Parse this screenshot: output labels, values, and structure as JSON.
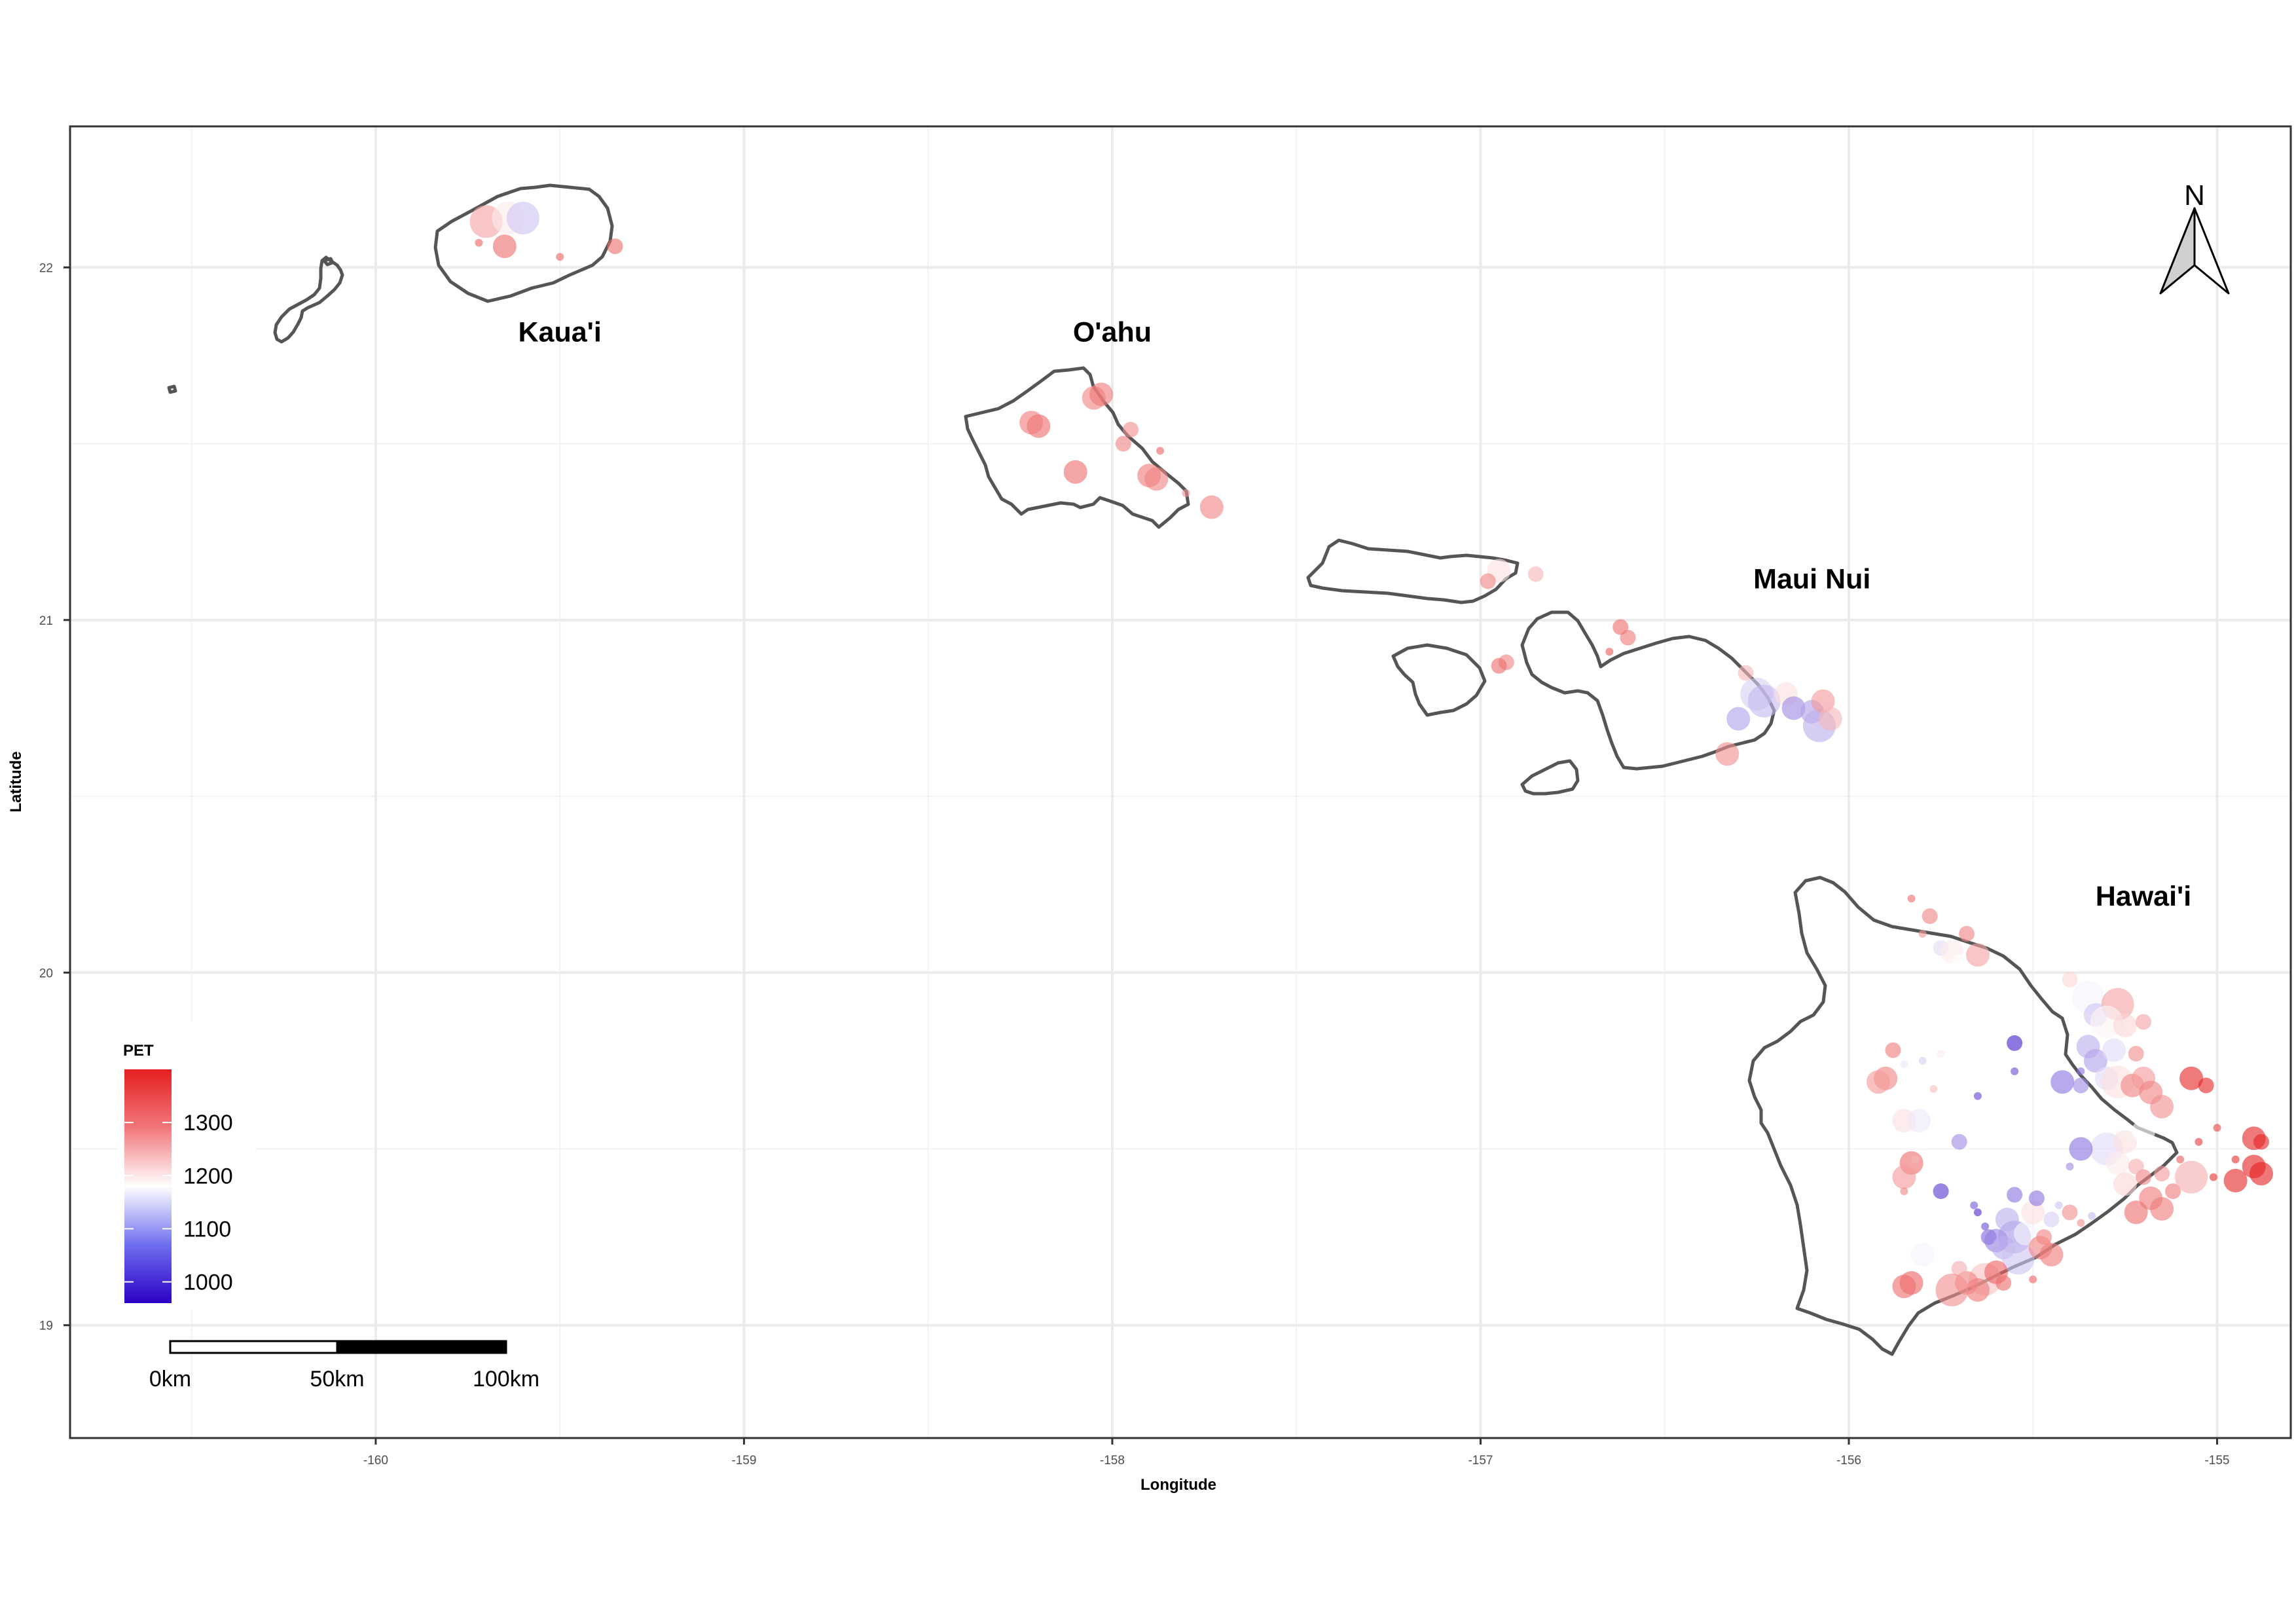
{
  "x_axis": {
    "title": "Longitude",
    "ticks": [
      -160,
      -159,
      -158,
      -157,
      -156,
      -155
    ],
    "tick_labels": [
      "-160",
      "-159",
      "-158",
      "-157",
      "-156",
      "-155"
    ]
  },
  "y_axis": {
    "title": "Latitude",
    "ticks": [
      19,
      20,
      21,
      22
    ],
    "tick_labels": [
      "19",
      "20",
      "21",
      "22"
    ]
  },
  "islands": [
    {
      "name": "Kaua'i",
      "lon": -159.5,
      "lat": 21.79
    },
    {
      "name": "O'ahu",
      "lon": -158.0,
      "lat": 21.79
    },
    {
      "name": "Maui Nui",
      "lon": -156.1,
      "lat": 21.09
    },
    {
      "name": "Hawai'i",
      "lon": -155.2,
      "lat": 20.19
    }
  ],
  "legend": {
    "title": "PET",
    "labels": [
      "1300",
      "1200",
      "1100",
      "1000"
    ],
    "values": [
      1300,
      1200,
      1100,
      1000
    ],
    "range": [
      960,
      1400
    ],
    "colors": {
      "low": "#2b00c4",
      "mid": "#ffffff",
      "high": "#e41f1f",
      "mid_value": 1180
    }
  },
  "scale_bar": {
    "labels": [
      "0km",
      "50km",
      "100km"
    ]
  },
  "north_arrow": {
    "label": "N"
  },
  "chart_data": {
    "type": "scatter",
    "xlabel": "Longitude",
    "ylabel": "Latitude",
    "xlim": [
      -160.83,
      -154.8
    ],
    "ylim": [
      18.68,
      22.4
    ],
    "grid": true,
    "legend_position": "bottom-left",
    "size_mapped": true,
    "points": [
      [
        -159.7,
        22.13,
        1270,
        3
      ],
      [
        -159.64,
        22.14,
        1200,
        3
      ],
      [
        -159.6,
        22.14,
        1130,
        3
      ],
      [
        -159.65,
        22.06,
        1320,
        2
      ],
      [
        -159.72,
        22.07,
        1330,
        0
      ],
      [
        -159.5,
        22.03,
        1330,
        0
      ],
      [
        -159.35,
        22.06,
        1320,
        1
      ],
      [
        -158.2,
        21.55,
        1320,
        2
      ],
      [
        -158.22,
        21.56,
        1310,
        2
      ],
      [
        -158.05,
        21.63,
        1300,
        2
      ],
      [
        -158.03,
        21.64,
        1310,
        2
      ],
      [
        -157.95,
        21.54,
        1290,
        1
      ],
      [
        -157.97,
        21.5,
        1300,
        1
      ],
      [
        -158.1,
        21.42,
        1320,
        2
      ],
      [
        -157.9,
        21.41,
        1310,
        2
      ],
      [
        -157.88,
        21.4,
        1300,
        2
      ],
      [
        -157.8,
        21.36,
        1290,
        0
      ],
      [
        -157.73,
        21.32,
        1300,
        2
      ],
      [
        -157.87,
        21.48,
        1330,
        0
      ],
      [
        -156.95,
        21.14,
        1210,
        2
      ],
      [
        -156.98,
        21.11,
        1300,
        1
      ],
      [
        -156.85,
        21.13,
        1250,
        1
      ],
      [
        -156.93,
        20.88,
        1300,
        1
      ],
      [
        -156.95,
        20.87,
        1320,
        1
      ],
      [
        -156.62,
        20.98,
        1320,
        1
      ],
      [
        -156.6,
        20.95,
        1310,
        1
      ],
      [
        -156.65,
        20.91,
        1340,
        0
      ],
      [
        -156.28,
        20.85,
        1250,
        1
      ],
      [
        -156.25,
        20.79,
        1140,
        3
      ],
      [
        -156.23,
        20.77,
        1120,
        3
      ],
      [
        -156.3,
        20.72,
        1100,
        2
      ],
      [
        -156.17,
        20.79,
        1210,
        2
      ],
      [
        -156.15,
        20.75,
        1080,
        2
      ],
      [
        -156.1,
        20.74,
        1100,
        2
      ],
      [
        -156.08,
        20.7,
        1110,
        3
      ],
      [
        -156.07,
        20.77,
        1280,
        2
      ],
      [
        -156.05,
        20.72,
        1250,
        2
      ],
      [
        -156.33,
        20.62,
        1290,
        2
      ],
      [
        -155.83,
        20.21,
        1320,
        0
      ],
      [
        -155.78,
        20.16,
        1300,
        1
      ],
      [
        -155.8,
        20.11,
        1280,
        0
      ],
      [
        -155.68,
        20.11,
        1300,
        1
      ],
      [
        -155.75,
        20.07,
        1150,
        1
      ],
      [
        -155.72,
        20.06,
        1200,
        2
      ],
      [
        -155.65,
        20.05,
        1270,
        2
      ],
      [
        -155.7,
        20.03,
        1180,
        1
      ],
      [
        -155.4,
        19.98,
        1220,
        1
      ],
      [
        -155.35,
        19.93,
        1170,
        3
      ],
      [
        -155.27,
        19.91,
        1270,
        3
      ],
      [
        -155.33,
        19.88,
        1130,
        2
      ],
      [
        -155.3,
        19.86,
        1190,
        3
      ],
      [
        -155.25,
        19.85,
        1220,
        2
      ],
      [
        -155.2,
        19.86,
        1270,
        1
      ],
      [
        -155.35,
        19.79,
        1110,
        2
      ],
      [
        -155.33,
        19.75,
        1100,
        2
      ],
      [
        -155.28,
        19.78,
        1150,
        2
      ],
      [
        -155.22,
        19.77,
        1290,
        1
      ],
      [
        -155.37,
        19.72,
        1060,
        0
      ],
      [
        -155.55,
        19.8,
        990,
        1
      ],
      [
        -155.55,
        19.72,
        1030,
        0
      ],
      [
        -155.3,
        19.7,
        1150,
        2
      ],
      [
        -155.27,
        19.69,
        1210,
        3
      ],
      [
        -155.23,
        19.68,
        1300,
        2
      ],
      [
        -155.2,
        19.7,
        1280,
        2
      ],
      [
        -155.18,
        19.66,
        1300,
        2
      ],
      [
        -155.15,
        19.62,
        1290,
        2
      ],
      [
        -155.42,
        19.69,
        1060,
        2
      ],
      [
        -155.37,
        19.68,
        1080,
        1
      ],
      [
        -155.07,
        19.7,
        1390,
        2
      ],
      [
        -155.03,
        19.68,
        1390,
        1
      ],
      [
        -154.9,
        19.53,
        1390,
        2
      ],
      [
        -154.88,
        19.52,
        1390,
        1
      ],
      [
        -154.95,
        19.47,
        1380,
        0
      ],
      [
        -154.9,
        19.45,
        1395,
        2
      ],
      [
        -154.88,
        19.43,
        1395,
        2
      ],
      [
        -154.95,
        19.41,
        1390,
        2
      ],
      [
        -155.05,
        19.52,
        1370,
        0
      ],
      [
        -155.0,
        19.56,
        1360,
        0
      ],
      [
        -155.01,
        19.42,
        1380,
        0
      ],
      [
        -155.1,
        19.47,
        1340,
        0
      ],
      [
        -155.12,
        19.38,
        1310,
        1
      ],
      [
        -155.2,
        19.42,
        1300,
        1
      ],
      [
        -155.15,
        19.43,
        1280,
        1
      ],
      [
        -155.18,
        19.36,
        1310,
        2
      ],
      [
        -155.15,
        19.33,
        1310,
        2
      ],
      [
        -155.22,
        19.32,
        1320,
        2
      ],
      [
        -155.07,
        19.42,
        1260,
        3
      ],
      [
        -155.3,
        19.5,
        1150,
        3
      ],
      [
        -155.25,
        19.52,
        1210,
        2
      ],
      [
        -155.2,
        19.55,
        1180,
        2
      ],
      [
        -155.27,
        19.46,
        1200,
        2
      ],
      [
        -155.25,
        19.4,
        1220,
        2
      ],
      [
        -155.22,
        19.45,
        1260,
        1
      ],
      [
        -155.37,
        19.5,
        1060,
        2
      ],
      [
        -155.4,
        19.45,
        1080,
        0
      ],
      [
        -155.34,
        19.31,
        1120,
        0
      ],
      [
        -155.4,
        19.32,
        1290,
        1
      ],
      [
        -155.37,
        19.29,
        1290,
        0
      ],
      [
        -155.88,
        19.78,
        1310,
        1
      ],
      [
        -155.9,
        19.7,
        1300,
        2
      ],
      [
        -155.92,
        19.69,
        1280,
        2
      ],
      [
        -155.8,
        19.75,
        1140,
        0
      ],
      [
        -155.85,
        19.74,
        1160,
        0
      ],
      [
        -155.75,
        19.77,
        1200,
        0
      ],
      [
        -155.85,
        19.58,
        1210,
        2
      ],
      [
        -155.81,
        19.58,
        1160,
        2
      ],
      [
        -155.83,
        19.46,
        1320,
        2
      ],
      [
        -155.85,
        19.42,
        1280,
        2
      ],
      [
        -155.8,
        19.51,
        1180,
        0
      ],
      [
        -155.82,
        19.47,
        1250,
        0
      ],
      [
        -155.77,
        19.67,
        1240,
        0
      ],
      [
        -155.65,
        19.65,
        1020,
        0
      ],
      [
        -155.7,
        19.52,
        1080,
        1
      ],
      [
        -155.85,
        19.38,
        1300,
        0
      ],
      [
        -155.82,
        19.25,
        1180,
        3
      ],
      [
        -155.8,
        19.2,
        1170,
        2
      ],
      [
        -155.83,
        19.12,
        1330,
        2
      ],
      [
        -155.85,
        19.11,
        1320,
        2
      ],
      [
        -155.75,
        19.38,
        1010,
        1
      ],
      [
        -155.66,
        19.34,
        1040,
        0
      ],
      [
        -155.65,
        19.32,
        1000,
        0
      ],
      [
        -155.63,
        19.28,
        1030,
        0
      ],
      [
        -155.62,
        19.25,
        1050,
        1
      ],
      [
        -155.6,
        19.24,
        1070,
        2
      ],
      [
        -155.55,
        19.25,
        1090,
        3
      ],
      [
        -155.58,
        19.22,
        1110,
        2
      ],
      [
        -155.54,
        19.19,
        1130,
        3
      ],
      [
        -155.52,
        19.26,
        1170,
        2
      ],
      [
        -155.5,
        19.32,
        1210,
        2
      ],
      [
        -155.49,
        19.36,
        1060,
        1
      ],
      [
        -155.55,
        19.37,
        1060,
        1
      ],
      [
        -155.57,
        19.3,
        1110,
        2
      ],
      [
        -155.45,
        19.3,
        1140,
        1
      ],
      [
        -155.43,
        19.34,
        1130,
        0
      ],
      [
        -155.48,
        19.22,
        1300,
        2
      ],
      [
        -155.45,
        19.2,
        1310,
        2
      ],
      [
        -155.47,
        19.25,
        1300,
        1
      ],
      [
        -155.63,
        19.13,
        1240,
        3
      ],
      [
        -155.65,
        19.1,
        1310,
        2
      ],
      [
        -155.68,
        19.12,
        1300,
        2
      ],
      [
        -155.6,
        19.15,
        1330,
        2
      ],
      [
        -155.7,
        19.16,
        1260,
        1
      ],
      [
        -155.58,
        19.12,
        1320,
        1
      ],
      [
        -155.5,
        19.13,
        1330,
        0
      ],
      [
        -155.78,
        19.28,
        1180,
        1
      ],
      [
        -155.72,
        19.1,
        1290,
        3
      ]
    ]
  }
}
